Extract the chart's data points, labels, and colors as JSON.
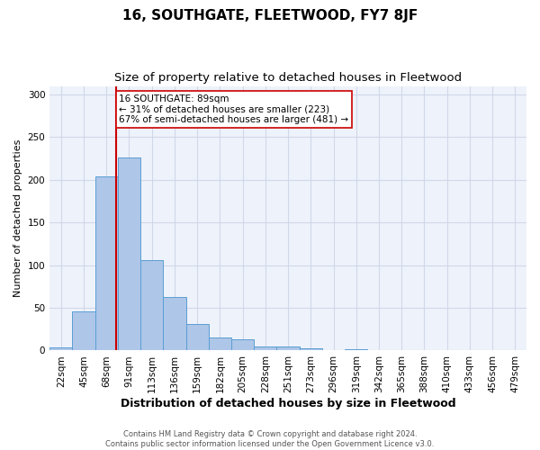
{
  "title": "16, SOUTHGATE, FLEETWOOD, FY7 8JF",
  "subtitle": "Size of property relative to detached houses in Fleetwood",
  "xlabel": "Distribution of detached houses by size in Fleetwood",
  "ylabel": "Number of detached properties",
  "footer_line1": "Contains HM Land Registry data © Crown copyright and database right 2024.",
  "footer_line2": "Contains public sector information licensed under the Open Government Licence v3.0.",
  "categories": [
    "22sqm",
    "45sqm",
    "68sqm",
    "91sqm",
    "113sqm",
    "136sqm",
    "159sqm",
    "182sqm",
    "205sqm",
    "228sqm",
    "251sqm",
    "273sqm",
    "296sqm",
    "319sqm",
    "342sqm",
    "365sqm",
    "388sqm",
    "410sqm",
    "433sqm",
    "456sqm",
    "479sqm"
  ],
  "values": [
    4,
    46,
    204,
    226,
    106,
    63,
    31,
    15,
    13,
    5,
    5,
    3,
    1,
    2,
    0,
    0,
    0,
    0,
    0,
    0,
    1
  ],
  "bar_color": "#aec6e8",
  "bar_edge_color": "#5a9fd4",
  "grid_color": "#d0d8e8",
  "bg_color": "#eef2fa",
  "ylim": [
    0,
    310
  ],
  "yticks": [
    0,
    50,
    100,
    150,
    200,
    250,
    300
  ],
  "vline_color": "#cc0000",
  "annotation_text": "16 SOUTHGATE: 89sqm\n← 31% of detached houses are smaller (223)\n67% of semi-detached houses are larger (481) →",
  "annotation_box_color": "#ffffff",
  "annotation_box_edge": "#cc0000",
  "title_fontsize": 11,
  "subtitle_fontsize": 9.5,
  "tick_fontsize": 7.5,
  "ylabel_fontsize": 8,
  "xlabel_fontsize": 9,
  "footer_fontsize": 6,
  "annotation_fontsize": 7.5
}
